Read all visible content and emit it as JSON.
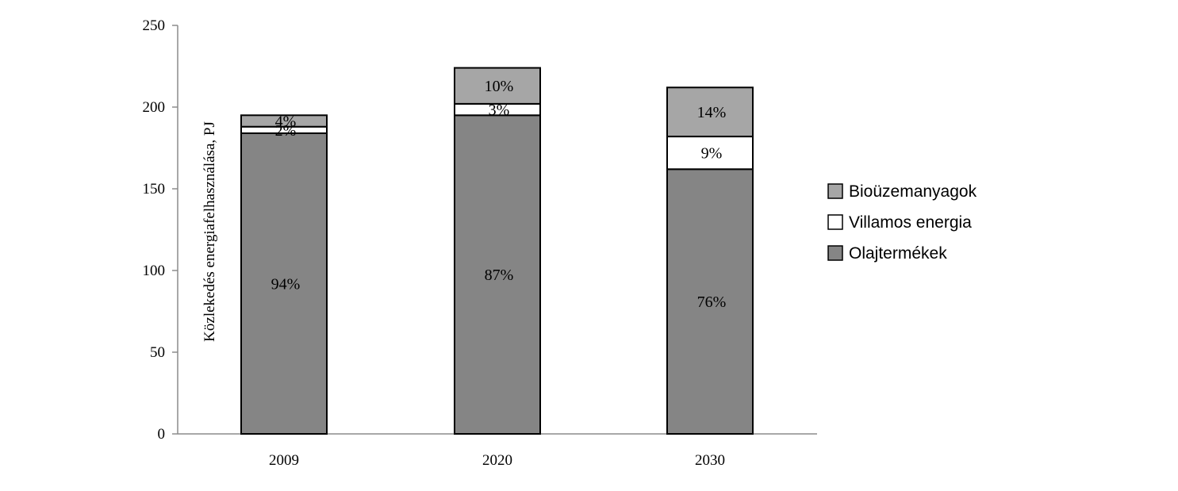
{
  "chart_data": {
    "type": "bar",
    "stacked": true,
    "categories": [
      "2009",
      "2020",
      "2030"
    ],
    "ylabel": "Közlekedés energiafelhasználása, PJ",
    "xlabel": "",
    "ylim": [
      0,
      250
    ],
    "yticks": [
      0,
      50,
      100,
      150,
      200,
      250
    ],
    "grid": false,
    "legend_position": "right",
    "series": [
      {
        "name": "Olajtermékek",
        "values": [
          184,
          195,
          162
        ],
        "labels": [
          "94%",
          "87%",
          "76%"
        ],
        "color": "#858585"
      },
      {
        "name": "Villamos energia",
        "values": [
          4,
          7,
          20
        ],
        "labels": [
          "2%",
          "3%",
          "9%"
        ],
        "color": "#ffffff"
      },
      {
        "name": "Bioüzemanyagok",
        "values": [
          7,
          22,
          30
        ],
        "labels": [
          "4%",
          "10%",
          "14%"
        ],
        "color": "#a6a6a6"
      }
    ],
    "legend_order": [
      2,
      1,
      0
    ]
  }
}
